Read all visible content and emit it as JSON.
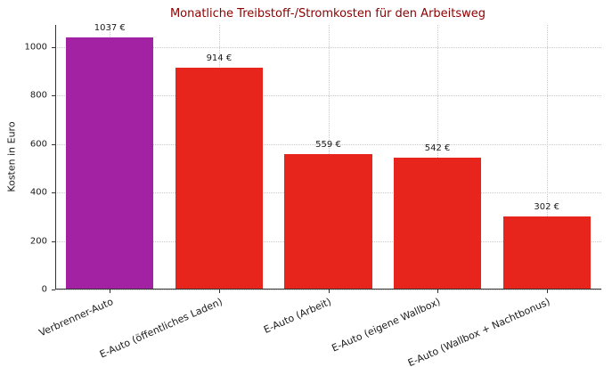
{
  "chart_data": {
    "type": "bar",
    "title": "Monatliche Treibstoff-/Stromkosten für den Arbeitsweg",
    "xlabel": "",
    "ylabel": "Kosten in Euro",
    "categories": [
      "Verbrenner-Auto",
      "E-Auto (öffentliches Laden)",
      "E-Auto (Arbeit)",
      "E-Auto (eigene Wallbox)",
      "E-Auto (Wallbox + Nachtbonus)"
    ],
    "values": [
      1037,
      914,
      559,
      542,
      302
    ],
    "bar_labels": [
      "1037 €",
      "914 €",
      "559 €",
      "542 €",
      "302 €"
    ],
    "bar_colors": [
      "#a321a3",
      "#e8251c",
      "#e8251c",
      "#e8251c",
      "#e8251c"
    ],
    "yticks": [
      0,
      200,
      400,
      600,
      800,
      1000
    ],
    "ylim": [
      0,
      1090
    ],
    "grid": "dotted",
    "legend": "none",
    "colors": {
      "title": "#8b0000",
      "axis": "#333333",
      "grid": "#c9c9c9"
    }
  }
}
